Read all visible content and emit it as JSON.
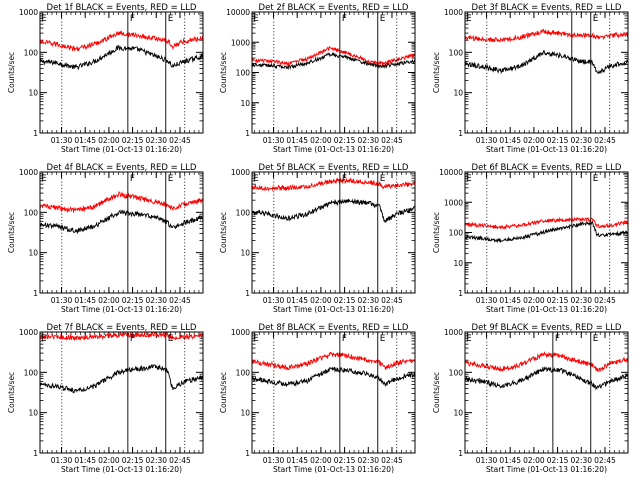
{
  "figure": {
    "start_time_label": "Start Time (01-Oct-13 01:16:20)",
    "ylabel": "Counts/sec",
    "x_tick_labels": [
      "01:30",
      "01:45",
      "02:00",
      "02:15",
      "02:30",
      "02:45"
    ],
    "colors": {
      "events": "#000000",
      "lld": "#ff0000"
    }
  },
  "chart_data": [
    {
      "type": "line",
      "title": "Det 1f BLACK = Events, RED = LLD",
      "log_y": true,
      "ylim": [
        1,
        1000
      ],
      "yticks": [
        "1",
        "10",
        "100",
        "1000"
      ],
      "xlim_minutes": [
        1.273,
        2.993
      ],
      "series": [
        {
          "name": "Events",
          "color": "#000000",
          "t": [
            1.273,
            1.45,
            1.65,
            1.85,
            2.1,
            2.3,
            2.5,
            2.62,
            2.67,
            2.8,
            2.95,
            2.993
          ],
          "values": [
            60,
            55,
            42,
            60,
            130,
            120,
            80,
            62,
            45,
            60,
            75,
            80
          ]
        },
        {
          "name": "LLD",
          "color": "#ff0000",
          "t": [
            1.273,
            1.45,
            1.65,
            1.85,
            2.1,
            2.3,
            2.5,
            2.62,
            2.67,
            2.8,
            2.95,
            2.993
          ],
          "values": [
            180,
            160,
            120,
            160,
            300,
            260,
            220,
            190,
            140,
            190,
            220,
            230
          ]
        }
      ],
      "markers": [
        {
          "t": 1.503,
          "style": "dotted",
          "label": ""
        },
        {
          "t": 2.2,
          "style": "solid",
          "label": "F"
        },
        {
          "t": 2.6,
          "style": "solid",
          "label": "E"
        },
        {
          "t": 2.8,
          "style": "dotted",
          "label": ""
        }
      ]
    },
    {
      "type": "line",
      "title": "Det 2f BLACK = Events, RED = LLD",
      "log_y": true,
      "ylim": [
        1,
        10000
      ],
      "yticks": [
        "1",
        "10",
        "100",
        "1000",
        "10000"
      ],
      "xlim_minutes": [
        1.273,
        2.993
      ],
      "series": [
        {
          "name": "Events",
          "color": "#000000",
          "t": [
            1.273,
            1.45,
            1.65,
            1.85,
            2.1,
            2.3,
            2.5,
            2.62,
            2.67,
            2.8,
            2.95,
            2.993
          ],
          "values": [
            180,
            170,
            150,
            200,
            400,
            300,
            190,
            160,
            160,
            200,
            220,
            230
          ]
        },
        {
          "name": "LLD",
          "color": "#ff0000",
          "t": [
            1.273,
            1.45,
            1.65,
            1.85,
            2.1,
            2.3,
            2.5,
            2.62,
            2.67,
            2.8,
            2.95,
            2.993
          ],
          "values": [
            250,
            240,
            200,
            280,
            650,
            420,
            240,
            200,
            200,
            260,
            350,
            380
          ]
        }
      ],
      "markers": [
        {
          "t": 1.503,
          "style": "dotted",
          "label": ""
        },
        {
          "t": 2.2,
          "style": "solid",
          "label": "F"
        },
        {
          "t": 2.6,
          "style": "solid",
          "label": "E"
        },
        {
          "t": 2.8,
          "style": "dotted",
          "label": ""
        }
      ]
    },
    {
      "type": "line",
      "title": "Det 3f BLACK = Events, RED = LLD",
      "log_y": true,
      "ylim": [
        1,
        1000
      ],
      "yticks": [
        "1",
        "10",
        "100",
        "1000"
      ],
      "xlim_minutes": [
        1.273,
        2.993
      ],
      "series": [
        {
          "name": "Events",
          "color": "#000000",
          "t": [
            1.273,
            1.45,
            1.65,
            1.85,
            2.1,
            2.3,
            2.5,
            2.62,
            2.67,
            2.8,
            2.95,
            2.993
          ],
          "values": [
            50,
            45,
            35,
            45,
            100,
            80,
            60,
            55,
            30,
            45,
            55,
            60
          ]
        },
        {
          "name": "LLD",
          "color": "#ff0000",
          "t": [
            1.273,
            1.45,
            1.65,
            1.85,
            2.1,
            2.3,
            2.5,
            2.62,
            2.67,
            2.8,
            2.95,
            2.993
          ],
          "values": [
            230,
            210,
            200,
            230,
            330,
            290,
            260,
            270,
            230,
            260,
            270,
            280
          ]
        }
      ],
      "markers": [
        {
          "t": 1.503,
          "style": "dotted",
          "label": ""
        },
        {
          "t": 2.4,
          "style": "solid",
          "label": ""
        },
        {
          "t": 2.6,
          "style": "solid",
          "label": "E"
        },
        {
          "t": 2.8,
          "style": "dotted",
          "label": ""
        }
      ]
    },
    {
      "type": "line",
      "title": "Det 4f BLACK = Events, RED = LLD",
      "log_y": true,
      "ylim": [
        1,
        1000
      ],
      "yticks": [
        "1",
        "10",
        "100",
        "1000"
      ],
      "xlim_minutes": [
        1.273,
        2.993
      ],
      "series": [
        {
          "name": "Events",
          "color": "#000000",
          "t": [
            1.273,
            1.45,
            1.65,
            1.85,
            2.1,
            2.3,
            2.5,
            2.62,
            2.67,
            2.8,
            2.95,
            2.993
          ],
          "values": [
            50,
            45,
            35,
            45,
            100,
            90,
            75,
            55,
            40,
            55,
            70,
            75
          ]
        },
        {
          "name": "LLD",
          "color": "#ff0000",
          "t": [
            1.273,
            1.45,
            1.65,
            1.85,
            2.1,
            2.3,
            2.5,
            2.62,
            2.67,
            2.8,
            2.95,
            2.993
          ],
          "values": [
            150,
            130,
            110,
            140,
            280,
            230,
            180,
            150,
            120,
            160,
            190,
            200
          ]
        }
      ],
      "markers": [
        {
          "t": 1.503,
          "style": "dotted",
          "label": ""
        },
        {
          "t": 2.2,
          "style": "solid",
          "label": "F"
        },
        {
          "t": 2.6,
          "style": "solid",
          "label": "E"
        },
        {
          "t": 2.8,
          "style": "dotted",
          "label": ""
        }
      ]
    },
    {
      "type": "line",
      "title": "Det 5f BLACK = Events, RED = LLD",
      "log_y": true,
      "ylim": [
        1,
        1000
      ],
      "yticks": [
        "1",
        "10",
        "100",
        "1000"
      ],
      "xlim_minutes": [
        1.273,
        2.993
      ],
      "series": [
        {
          "name": "Events",
          "color": "#000000",
          "t": [
            1.273,
            1.45,
            1.65,
            1.85,
            2.1,
            2.3,
            2.5,
            2.62,
            2.67,
            2.8,
            2.95,
            2.993
          ],
          "values": [
            100,
            90,
            70,
            90,
            170,
            190,
            170,
            140,
            60,
            90,
            120,
            130
          ]
        },
        {
          "name": "LLD",
          "color": "#ff0000",
          "t": [
            1.273,
            1.45,
            1.65,
            1.85,
            2.1,
            2.3,
            2.5,
            2.62,
            2.67,
            2.8,
            2.95,
            2.993
          ],
          "values": [
            420,
            400,
            400,
            430,
            580,
            600,
            550,
            520,
            420,
            460,
            500,
            510
          ]
        }
      ],
      "markers": [
        {
          "t": 1.503,
          "style": "dotted",
          "label": ""
        },
        {
          "t": 2.2,
          "style": "solid",
          "label": "F"
        },
        {
          "t": 2.6,
          "style": "solid",
          "label": "E"
        },
        {
          "t": 2.8,
          "style": "dotted",
          "label": ""
        }
      ]
    },
    {
      "type": "line",
      "title": "Det 6f BLACK = Events, RED = LLD",
      "log_y": true,
      "ylim": [
        1,
        10000
      ],
      "yticks": [
        "1",
        "10",
        "100",
        "1000",
        "10000"
      ],
      "xlim_minutes": [
        1.273,
        2.993
      ],
      "series": [
        {
          "name": "Events",
          "color": "#000000",
          "t": [
            1.273,
            1.45,
            1.65,
            1.85,
            2.1,
            2.3,
            2.5,
            2.62,
            2.67,
            2.8,
            2.95,
            2.993
          ],
          "values": [
            70,
            65,
            55,
            65,
            100,
            140,
            190,
            200,
            80,
            85,
            95,
            100
          ]
        },
        {
          "name": "LLD",
          "color": "#ff0000",
          "t": [
            1.273,
            1.45,
            1.65,
            1.85,
            2.1,
            2.3,
            2.5,
            2.62,
            2.67,
            2.8,
            2.95,
            2.993
          ],
          "values": [
            180,
            175,
            150,
            170,
            240,
            260,
            270,
            260,
            160,
            170,
            210,
            220
          ]
        }
      ],
      "markers": [
        {
          "t": 1.503,
          "style": "dotted",
          "label": ""
        },
        {
          "t": 2.4,
          "style": "solid",
          "label": ""
        },
        {
          "t": 2.6,
          "style": "solid",
          "label": "E"
        },
        {
          "t": 2.8,
          "style": "dotted",
          "label": ""
        }
      ]
    },
    {
      "type": "line",
      "title": "Det 7f BLACK = Events, RED = LLD",
      "log_y": true,
      "ylim": [
        1,
        1000
      ],
      "yticks": [
        "1",
        "10",
        "100",
        "1000"
      ],
      "xlim_minutes": [
        1.273,
        2.993
      ],
      "series": [
        {
          "name": "Events",
          "color": "#000000",
          "t": [
            1.273,
            1.45,
            1.65,
            1.85,
            2.1,
            2.3,
            2.5,
            2.62,
            2.67,
            2.8,
            2.95,
            2.993
          ],
          "values": [
            50,
            45,
            35,
            45,
            100,
            120,
            140,
            110,
            40,
            60,
            70,
            75
          ]
        },
        {
          "name": "LLD",
          "color": "#ff0000",
          "t": [
            1.273,
            1.45,
            1.65,
            1.85,
            2.1,
            2.3,
            2.5,
            2.62,
            2.67,
            2.8,
            2.95,
            2.993
          ],
          "values": [
            750,
            740,
            720,
            760,
            830,
            850,
            880,
            850,
            730,
            760,
            790,
            800
          ]
        }
      ],
      "markers": [
        {
          "t": 1.503,
          "style": "dotted",
          "label": ""
        },
        {
          "t": 2.2,
          "style": "solid",
          "label": "F"
        },
        {
          "t": 2.6,
          "style": "solid",
          "label": "E"
        },
        {
          "t": 2.8,
          "style": "dotted",
          "label": ""
        }
      ]
    },
    {
      "type": "line",
      "title": "Det 8f BLACK = Events, RED = LLD",
      "log_y": true,
      "ylim": [
        1,
        1000
      ],
      "yticks": [
        "1",
        "10",
        "100",
        "1000"
      ],
      "xlim_minutes": [
        1.273,
        2.993
      ],
      "series": [
        {
          "name": "Events",
          "color": "#000000",
          "t": [
            1.273,
            1.45,
            1.65,
            1.85,
            2.1,
            2.3,
            2.5,
            2.62,
            2.67,
            2.8,
            2.95,
            2.993
          ],
          "values": [
            70,
            60,
            50,
            60,
            120,
            110,
            90,
            70,
            50,
            70,
            85,
            90
          ]
        },
        {
          "name": "LLD",
          "color": "#ff0000",
          "t": [
            1.273,
            1.45,
            1.65,
            1.85,
            2.1,
            2.3,
            2.5,
            2.62,
            2.67,
            2.8,
            2.95,
            2.993
          ],
          "values": [
            180,
            160,
            130,
            160,
            280,
            250,
            200,
            170,
            130,
            170,
            200,
            210
          ]
        }
      ],
      "markers": [
        {
          "t": 1.503,
          "style": "dotted",
          "label": ""
        },
        {
          "t": 2.2,
          "style": "solid",
          "label": "F"
        },
        {
          "t": 2.6,
          "style": "solid",
          "label": "E"
        },
        {
          "t": 2.8,
          "style": "dotted",
          "label": ""
        }
      ]
    },
    {
      "type": "line",
      "title": "Det 9f BLACK = Events, RED = LLD",
      "log_y": true,
      "ylim": [
        1,
        1000
      ],
      "yticks": [
        "1",
        "10",
        "100",
        "1000"
      ],
      "xlim_minutes": [
        1.273,
        2.993
      ],
      "series": [
        {
          "name": "Events",
          "color": "#000000",
          "t": [
            1.273,
            1.45,
            1.65,
            1.85,
            2.1,
            2.3,
            2.5,
            2.62,
            2.67,
            2.8,
            2.95,
            2.993
          ],
          "values": [
            70,
            60,
            45,
            60,
            120,
            110,
            70,
            50,
            40,
            60,
            80,
            85
          ]
        },
        {
          "name": "LLD",
          "color": "#ff0000",
          "t": [
            1.273,
            1.45,
            1.65,
            1.85,
            2.1,
            2.3,
            2.5,
            2.62,
            2.67,
            2.8,
            2.95,
            2.993
          ],
          "values": [
            170,
            150,
            120,
            150,
            280,
            250,
            180,
            150,
            110,
            160,
            200,
            210
          ]
        }
      ],
      "markers": [
        {
          "t": 1.503,
          "style": "dotted",
          "label": ""
        },
        {
          "t": 2.2,
          "style": "solid",
          "label": "F"
        },
        {
          "t": 2.6,
          "style": "solid",
          "label": "E"
        },
        {
          "t": 2.8,
          "style": "dotted",
          "label": ""
        }
      ]
    }
  ]
}
